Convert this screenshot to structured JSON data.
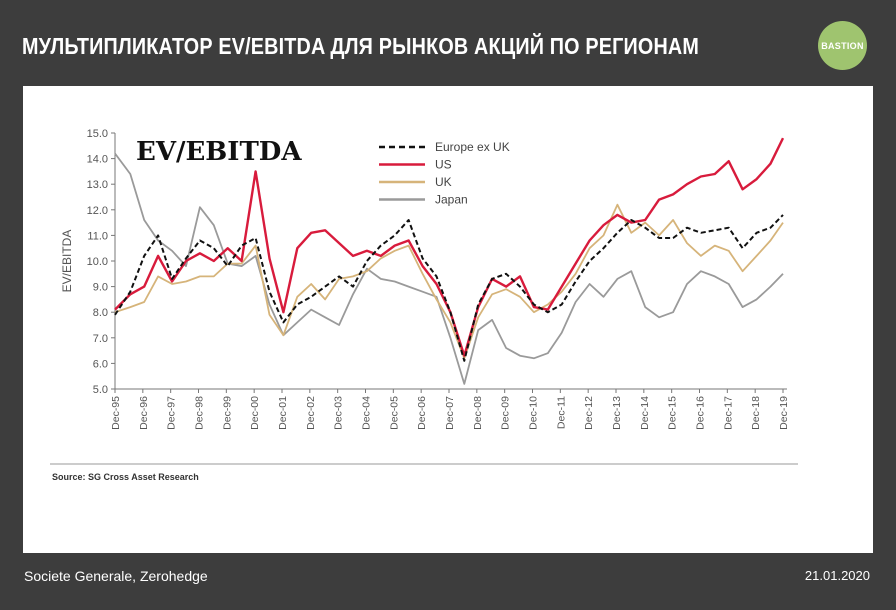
{
  "header": {
    "title": "МУЛЬТИПЛИКАТОР EV/EBITDA ДЛЯ РЫНКОВ АКЦИЙ ПО РЕГИОНАМ",
    "logo_text": "BASTION",
    "logo_color": "#9fc46f"
  },
  "footer": {
    "source": "Societe Generale, Zerohedge",
    "date": "21.01.2020"
  },
  "chart_data": {
    "type": "line",
    "title": "EV/EBITDA",
    "xlabel": "",
    "ylabel": "EV/EBITDA",
    "ylim": [
      5.0,
      15.0
    ],
    "yticks": [
      "5.0",
      "6.0",
      "7.0",
      "8.0",
      "9.0",
      "10.0",
      "11.0",
      "12.0",
      "13.0",
      "14.0",
      "15.0"
    ],
    "categories": [
      "Dec-95",
      "Dec-96",
      "Dec-97",
      "Dec-98",
      "Dec-99",
      "Dec-00",
      "Dec-01",
      "Dec-02",
      "Dec-03",
      "Dec-04",
      "Dec-05",
      "Dec-06",
      "Dec-07",
      "Dec-08",
      "Dec-09",
      "Dec-10",
      "Dec-11",
      "Dec-12",
      "Dec-13",
      "Dec-14",
      "Dec-15",
      "Dec-16",
      "Dec-17",
      "Dec-18",
      "Dec-19"
    ],
    "x": [
      1995.95,
      1996.5,
      1997,
      1997.5,
      1998,
      1998.5,
      1999,
      1999.5,
      2000,
      2000.5,
      2001,
      2001.5,
      2002,
      2002.5,
      2003,
      2003.5,
      2004,
      2004.5,
      2005,
      2005.5,
      2006,
      2006.5,
      2007,
      2007.5,
      2008,
      2008.5,
      2009,
      2009.5,
      2010,
      2010.5,
      2011,
      2011.5,
      2012,
      2012.5,
      2013,
      2013.5,
      2014,
      2014.5,
      2015,
      2015.5,
      2016,
      2016.5,
      2017,
      2017.5,
      2018,
      2018.5,
      2019,
      2019.5,
      2019.95
    ],
    "series": [
      {
        "name": "Europe ex UK",
        "color": "#111111",
        "dash": "5,3",
        "values": [
          7.9,
          8.8,
          10.2,
          11.0,
          9.3,
          10.1,
          10.8,
          10.5,
          9.8,
          10.6,
          10.9,
          8.8,
          7.6,
          8.3,
          8.6,
          9.0,
          9.4,
          9.0,
          10.0,
          10.6,
          11.0,
          11.6,
          10.1,
          9.4,
          8.0,
          6.1,
          8.3,
          9.3,
          9.5,
          9.0,
          8.3,
          8.0,
          8.3,
          9.2,
          10.0,
          10.5,
          11.1,
          11.6,
          11.3,
          10.9,
          10.9,
          11.3,
          11.1,
          11.2,
          11.3,
          10.5,
          11.1,
          11.3,
          11.8
        ]
      },
      {
        "name": "US",
        "color": "#d81b3c",
        "dash": "",
        "values": [
          8.1,
          8.7,
          9.0,
          10.2,
          9.2,
          10.0,
          10.3,
          10.0,
          10.5,
          10.0,
          13.5,
          10.1,
          8.0,
          10.5,
          11.1,
          11.2,
          10.7,
          10.2,
          10.4,
          10.2,
          10.6,
          10.8,
          9.8,
          9.1,
          8.0,
          6.3,
          8.2,
          9.3,
          9.0,
          9.4,
          8.2,
          8.1,
          9.0,
          9.9,
          10.8,
          11.4,
          11.8,
          11.5,
          11.6,
          12.4,
          12.6,
          13.0,
          13.3,
          13.4,
          13.9,
          12.8,
          13.2,
          13.8,
          14.8
        ]
      },
      {
        "name": "UK",
        "color": "#d6b47a",
        "dash": "",
        "values": [
          8.0,
          8.2,
          8.4,
          9.4,
          9.1,
          9.2,
          9.4,
          9.4,
          9.9,
          9.9,
          10.6,
          7.9,
          7.1,
          8.6,
          9.1,
          8.5,
          9.3,
          9.4,
          9.6,
          10.1,
          10.4,
          10.6,
          9.5,
          8.5,
          7.6,
          6.2,
          7.8,
          8.7,
          8.9,
          8.6,
          8.0,
          8.3,
          8.8,
          9.5,
          10.5,
          11.0,
          12.2,
          11.1,
          11.5,
          11.0,
          11.6,
          10.7,
          10.2,
          10.6,
          10.4,
          9.6,
          10.2,
          10.8,
          11.5
        ]
      },
      {
        "name": "Japan",
        "color": "#9a9a9a",
        "dash": "",
        "values": [
          14.2,
          13.4,
          11.6,
          10.8,
          10.4,
          9.8,
          12.1,
          11.4,
          9.9,
          9.8,
          10.2,
          8.3,
          7.1,
          7.6,
          8.1,
          7.8,
          7.5,
          8.7,
          9.7,
          9.3,
          9.2,
          9.0,
          8.8,
          8.6,
          7.0,
          5.2,
          7.3,
          7.7,
          6.6,
          6.3,
          6.2,
          6.4,
          7.2,
          8.4,
          9.1,
          8.6,
          9.3,
          9.6,
          8.2,
          7.8,
          8.0,
          9.1,
          9.6,
          9.4,
          9.1,
          8.2,
          8.5,
          9.0,
          9.5
        ]
      }
    ],
    "source": "Source: SG Cross Asset Research"
  }
}
